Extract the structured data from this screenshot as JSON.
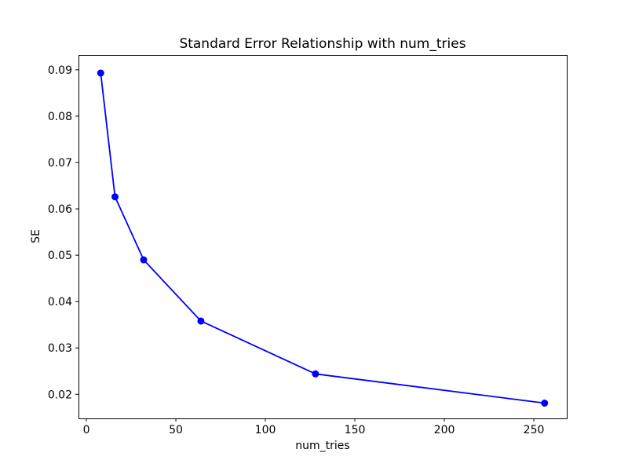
{
  "chart_data": {
    "type": "line",
    "title": "Standard Error Relationship with num_tries",
    "xlabel": "num_tries",
    "ylabel": "SE",
    "x": [
      8,
      16,
      32,
      64,
      128,
      256
    ],
    "y": [
      0.0893,
      0.0626,
      0.049,
      0.0358,
      0.0244,
      0.0181
    ],
    "xlim": [
      -4.4,
      268.4
    ],
    "ylim": [
      0.0148,
      0.0932
    ],
    "xticks": [
      0,
      50,
      100,
      150,
      200,
      250
    ],
    "xtick_labels": [
      "0",
      "50",
      "100",
      "150",
      "200",
      "250"
    ],
    "yticks": [
      0.02,
      0.03,
      0.04,
      0.05,
      0.06,
      0.07,
      0.08,
      0.09
    ],
    "ytick_labels": [
      "0.02",
      "0.03",
      "0.04",
      "0.05",
      "0.06",
      "0.07",
      "0.08",
      "0.09"
    ],
    "line_color": "#0000ff",
    "marker": "o",
    "marker_size": 4.5,
    "line_width": 1.8,
    "grid": false,
    "legend": null,
    "background_color": "#ffffff",
    "spine_color": "#000000"
  }
}
